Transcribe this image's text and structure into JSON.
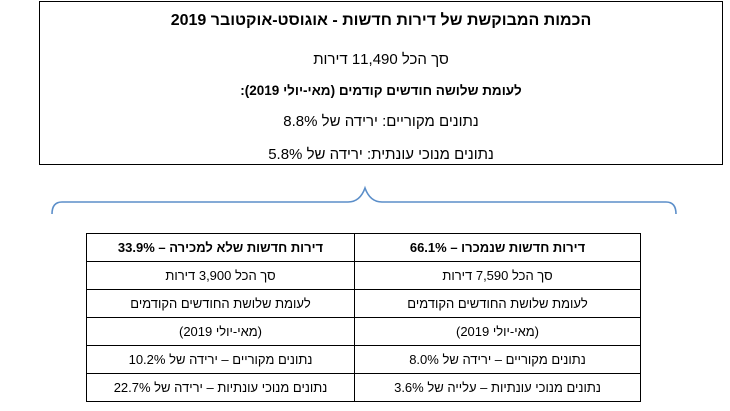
{
  "summary": {
    "title": "הכמות המבוקשת של דירות חדשות - אוגוסט-אוקטובר 2019",
    "total": "סך הכל 11,490 דירות",
    "comparison_label": "לעומת שלושה חודשים קודמים (מאי-יולי 2019):",
    "raw_change": "נתונים מקוריים: ירידה של 8.8%",
    "seasonal_change": "נתונים מנוכי עונתית: ירידה של 5.8%"
  },
  "breakdown": {
    "sold": {
      "header": "דירות חדשות שנמכרו – 66.1%",
      "total": "סך הכל 7,590 דירות",
      "comparison_line1": "לעומת שלושת החודשים הקודמים",
      "comparison_line2": "(מאי-יולי 2019)",
      "raw_change": "נתונים מקוריים – ירידה של 8.0%",
      "seasonal_change": "נתונים מנוכי עונתיות – עלייה של 3.6%"
    },
    "unsold": {
      "header": "דירות חדשות שלא למכירה – 33.9%",
      "total": "סך הכל 3,900 דירות",
      "comparison_line1": "לעומת שלושת החודשים הקודמים",
      "comparison_line2": "(מאי-יולי 2019)",
      "raw_change": "נתונים מקוריים – ירידה של 10.2%",
      "seasonal_change": "נתונים מנוכי עונתיות – ירידה של 22.7%"
    }
  },
  "colors": {
    "brace": "#5b8ec9",
    "border": "#000000"
  }
}
